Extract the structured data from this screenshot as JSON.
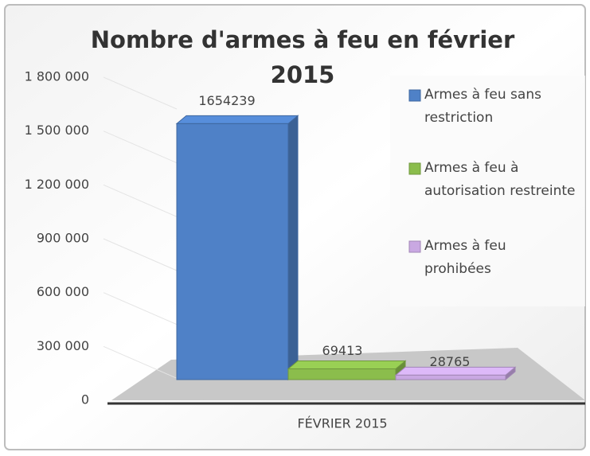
{
  "chart_data": {
    "type": "bar3d",
    "title": "Nombre d'armes à feu en février 2015",
    "categories": [
      "FÉVRIER 2015"
    ],
    "series": [
      {
        "name": "Armes à feu sans restriction",
        "color": "#4f81c7",
        "values": [
          1654239
        ]
      },
      {
        "name": "Armes à feu à autorisation restreinte",
        "color": "#8bbd4c",
        "values": [
          69413
        ]
      },
      {
        "name": "Armes à feu prohibées",
        "color": "#c9a8e2",
        "values": [
          28765
        ]
      }
    ],
    "ylim": [
      0,
      1800000
    ],
    "yticks": [
      0,
      {
        "value": 300000,
        "label": "300 000"
      },
      {
        "value": 600000,
        "label": "600 000"
      },
      {
        "value": 900000,
        "label": "900 000"
      },
      {
        "value": 1200000,
        "label": "1 200 000"
      },
      {
        "value": 1500000,
        "label": "1 500 000"
      },
      {
        "value": 1800000,
        "label": "1 800 000"
      }
    ],
    "legend": "right"
  }
}
